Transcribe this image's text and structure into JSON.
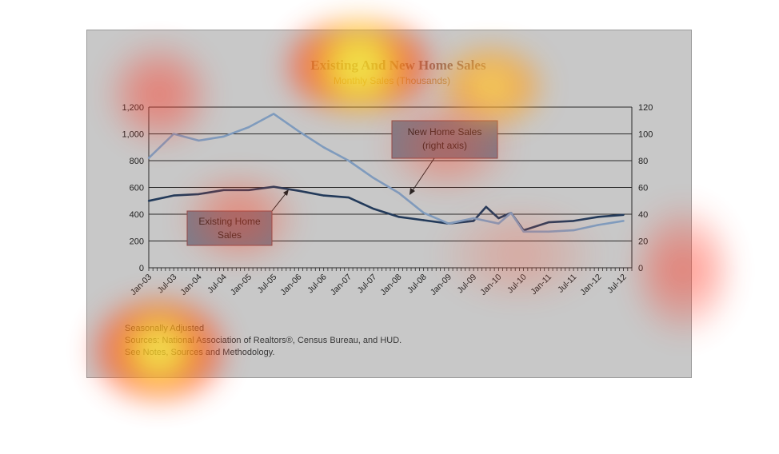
{
  "chart_data": {
    "type": "line",
    "title": "Existing And New Home Sales",
    "subtitle": "Monthly Sales (Thousands)",
    "x_tick_labels": [
      "Jan-03",
      "Jul-03",
      "Jan-04",
      "Jul-04",
      "Jan-05",
      "Jul-05",
      "Jan-06",
      "Jul-06",
      "Jan-07",
      "Jul-07",
      "Jan-08",
      "Jul-08",
      "Jan-09",
      "Jul-09",
      "Jan-10",
      "Jul-10",
      "Jan-11",
      "Jul-11",
      "Jan-12",
      "Jul-12"
    ],
    "left_axis": {
      "ticks": [
        "0",
        "200",
        "400",
        "600",
        "800",
        "1,000",
        "1,200"
      ],
      "range": [
        0,
        1200
      ]
    },
    "right_axis": {
      "ticks": [
        "0",
        "20",
        "40",
        "60",
        "80",
        "100",
        "120"
      ],
      "range": [
        0,
        120
      ]
    },
    "grid": true,
    "series": [
      {
        "name": "Existing Home Sales",
        "axis": "left",
        "color": "#223a5a",
        "x": [
          "2003-01",
          "2003-07",
          "2004-01",
          "2004-07",
          "2005-01",
          "2005-07",
          "2006-01",
          "2006-07",
          "2007-01",
          "2007-07",
          "2008-01",
          "2008-07",
          "2009-01",
          "2009-07",
          "2009-10",
          "2010-01",
          "2010-04",
          "2010-07",
          "2011-01",
          "2011-07",
          "2012-01",
          "2012-07"
        ],
        "values": [
          500,
          540,
          550,
          580,
          580,
          605,
          575,
          540,
          525,
          440,
          380,
          355,
          330,
          350,
          455,
          370,
          410,
          280,
          340,
          350,
          380,
          395
        ]
      },
      {
        "name": "New Home Sales",
        "axis": "right",
        "color": "#7f9bbd",
        "x": [
          "2003-01",
          "2003-07",
          "2004-01",
          "2004-07",
          "2005-01",
          "2005-07",
          "2006-01",
          "2006-07",
          "2007-01",
          "2007-07",
          "2008-01",
          "2008-07",
          "2009-01",
          "2009-07",
          "2010-01",
          "2010-04",
          "2010-07",
          "2011-01",
          "2011-07",
          "2012-01",
          "2012-07"
        ],
        "values": [
          82,
          100,
          95,
          98,
          105,
          115,
          102,
          90,
          80,
          67,
          56,
          41,
          33,
          37,
          33,
          41,
          27,
          27,
          28,
          32,
          35
        ]
      }
    ],
    "annotations": [
      {
        "line1": "New Home Sales",
        "line2": "(right axis)"
      },
      {
        "line1": "Existing Home",
        "line2": "Sales"
      }
    ],
    "notes": [
      "Seasonally Adjusted",
      "Sources:  National Association of Realtors®, Census Bureau, and HUD.",
      "See Notes, Sources and Methodology."
    ]
  }
}
